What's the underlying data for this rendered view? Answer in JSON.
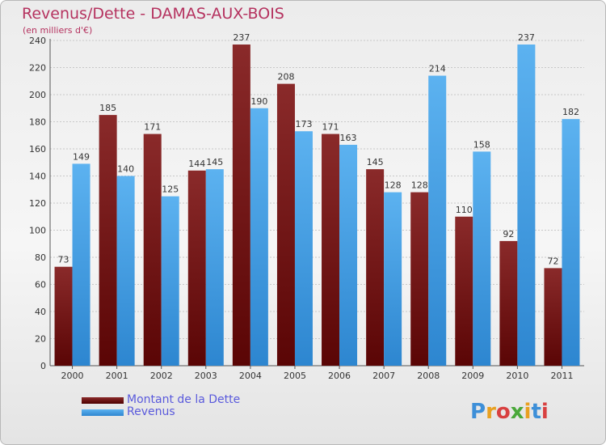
{
  "title": "Revenus/Dette - DAMAS-AUX-BOIS",
  "subtitle": "(en milliers d'€)",
  "logo_text": "Proxiti",
  "colors": {
    "title": "#b5325f",
    "dette": "#7a1a1a",
    "revenus": "#4aa3e8",
    "legend_text": "#5a5adc"
  },
  "legend": [
    {
      "label": "Montant de la Dette",
      "color": "#6b0f0f"
    },
    {
      "label": "Revenus",
      "color": "#3d97e0"
    }
  ],
  "chart_data": {
    "type": "bar",
    "title": "Revenus/Dette - DAMAS-AUX-BOIS",
    "subtitle": "(en milliers d'€)",
    "categories": [
      "2000",
      "2001",
      "2002",
      "2003",
      "2004",
      "2005",
      "2006",
      "2007",
      "2008",
      "2009",
      "2010",
      "2011"
    ],
    "series": [
      {
        "name": "Montant de la Dette",
        "values": [
          73,
          185,
          171,
          144,
          237,
          208,
          171,
          145,
          128,
          110,
          92,
          72
        ]
      },
      {
        "name": "Revenus",
        "values": [
          149,
          140,
          125,
          145,
          190,
          173,
          163,
          128,
          214,
          158,
          237,
          182
        ]
      }
    ],
    "ylim": [
      0,
      240
    ],
    "yticks": [
      0,
      20,
      40,
      60,
      80,
      100,
      120,
      140,
      160,
      180,
      200,
      220,
      240
    ],
    "grid": true,
    "legend_position": "bottom-left"
  }
}
